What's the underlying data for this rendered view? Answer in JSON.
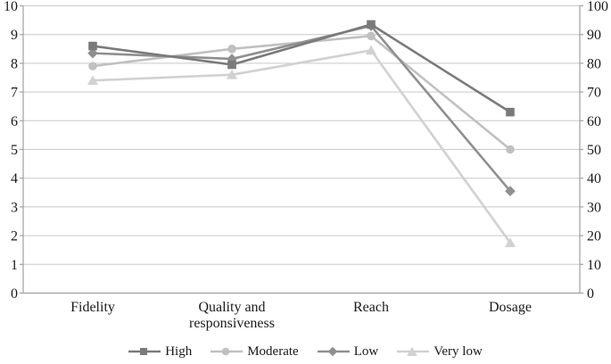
{
  "chart_data": {
    "type": "line",
    "title": "",
    "xlabel": "",
    "ylabel_left": "",
    "ylabel_right": "",
    "categories": [
      "Fidelity",
      "Quality and responsiveness",
      "Reach",
      "Dosage"
    ],
    "category_label_lines": [
      [
        "Fidelity"
      ],
      [
        "Quality and",
        "responsiveness"
      ],
      [
        "Reach"
      ],
      [
        "Dosage"
      ]
    ],
    "series": [
      {
        "name": "Very low",
        "marker": "triangle",
        "color": "#d1d1d1",
        "values": [
          7.4,
          7.6,
          8.45,
          1.75
        ]
      },
      {
        "name": "Moderate",
        "marker": "circle",
        "color": "#c0c0c0",
        "values": [
          7.9,
          8.5,
          8.95,
          5.0
        ]
      },
      {
        "name": "Low",
        "marker": "diamond",
        "color": "#8f8f8f",
        "values": [
          8.35,
          8.15,
          9.3,
          3.55
        ]
      },
      {
        "name": "High",
        "marker": "square",
        "color": "#7a7a7a",
        "values": [
          8.6,
          7.95,
          9.35,
          6.3
        ]
      }
    ],
    "legend_order": [
      "High",
      "Moderate",
      "Low",
      "Very low"
    ],
    "legend_position": "bottom",
    "left_axis": {
      "min": 0,
      "max": 10,
      "step": 1,
      "tick_labels": [
        "0",
        "1",
        "2",
        "3",
        "4",
        "5",
        "6",
        "7",
        "8",
        "9",
        "10"
      ]
    },
    "right_axis": {
      "min": 0,
      "max": 100,
      "step": 10,
      "tick_labels": [
        "0",
        "10",
        "20",
        "30",
        "40",
        "50",
        "60",
        "70",
        "80",
        "90",
        "100"
      ]
    },
    "grid": true,
    "colors": {
      "gridline": "#c9c9c9",
      "axis": "#a0a0a0",
      "text": "#1a1a1a",
      "background": "#ffffff"
    }
  }
}
